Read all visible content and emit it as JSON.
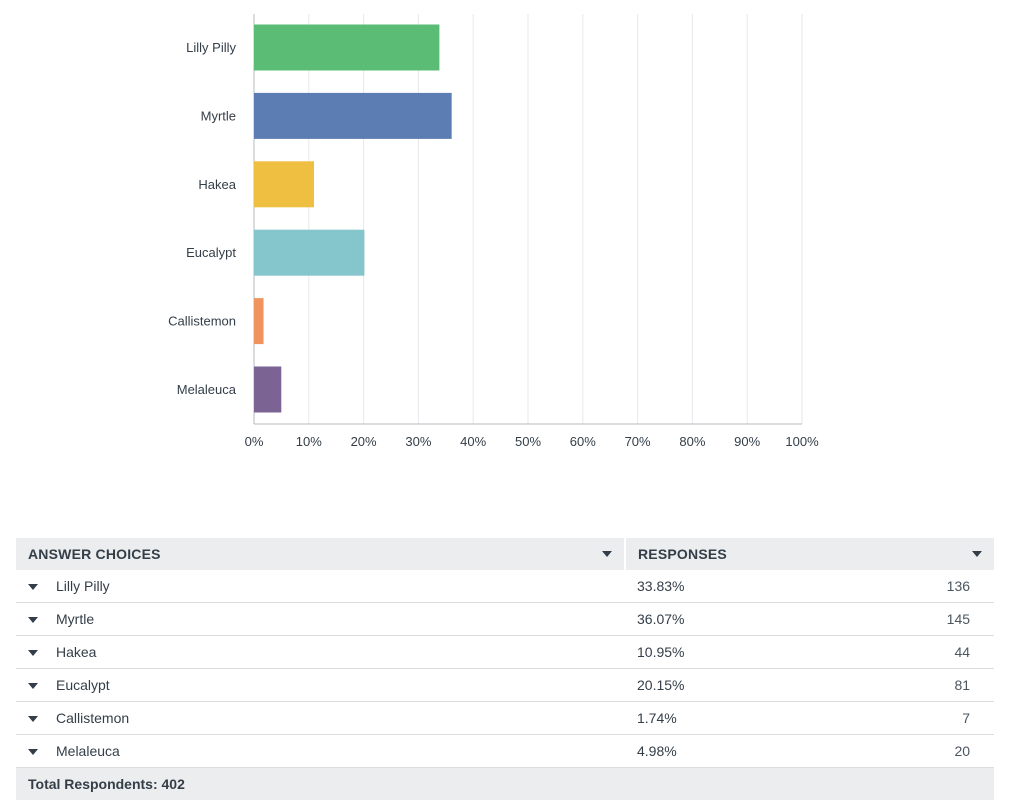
{
  "chart_data": {
    "type": "bar",
    "orientation": "horizontal",
    "categories": [
      "Lilly Pilly",
      "Myrtle",
      "Hakea",
      "Eucalypt",
      "Callistemon",
      "Melaleuca"
    ],
    "values": [
      33.83,
      36.07,
      10.95,
      20.15,
      1.74,
      4.98
    ],
    "colors": [
      "#5bbc76",
      "#5b7db3",
      "#eebf40",
      "#85c5cc",
      "#f0935f",
      "#7b6394"
    ],
    "xlim": [
      0,
      100
    ],
    "xticks": [
      "0%",
      "10%",
      "20%",
      "30%",
      "40%",
      "50%",
      "60%",
      "70%",
      "80%",
      "90%",
      "100%"
    ],
    "grid": true
  },
  "table": {
    "headers": {
      "choice": "ANSWER CHOICES",
      "responses": "RESPONSES"
    },
    "rows": [
      {
        "label": "Lilly Pilly",
        "percent": "33.83%",
        "count": "136"
      },
      {
        "label": "Myrtle",
        "percent": "36.07%",
        "count": "145"
      },
      {
        "label": "Hakea",
        "percent": "10.95%",
        "count": "44"
      },
      {
        "label": "Eucalypt",
        "percent": "20.15%",
        "count": "81"
      },
      {
        "label": "Callistemon",
        "percent": "1.74%",
        "count": "7"
      },
      {
        "label": "Melaleuca",
        "percent": "4.98%",
        "count": "20"
      }
    ],
    "footer": "Total Respondents: 402"
  }
}
